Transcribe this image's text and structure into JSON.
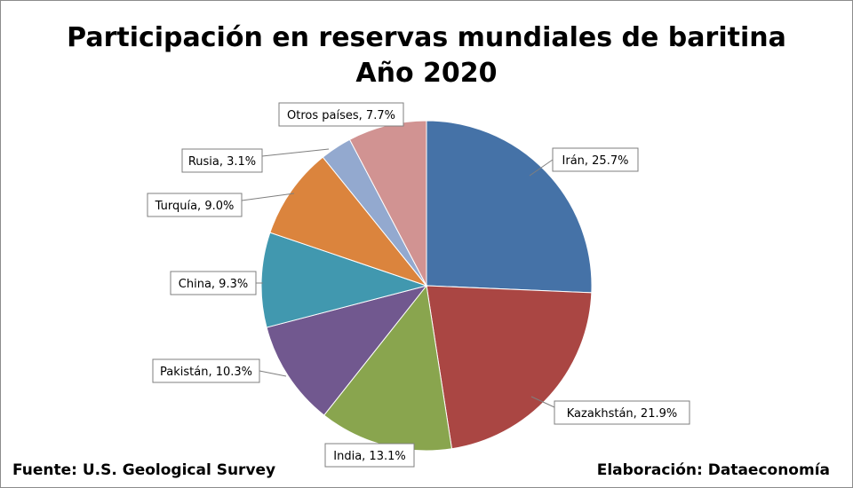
{
  "chart_data": {
    "type": "pie",
    "title": "Participación en reservas mundiales de baritina",
    "subtitle": "Año 2020",
    "slices": [
      {
        "label": "Irán",
        "value": 25.7,
        "display": "Irán, 25.7%",
        "color": "#4572A7"
      },
      {
        "label": "Kazakhstán",
        "value": 21.9,
        "display": "Kazakhstán, 21.9%",
        "color": "#AA4643"
      },
      {
        "label": "India",
        "value": 13.1,
        "display": "India, 13.1%",
        "color": "#89A54E"
      },
      {
        "label": "Pakistán",
        "value": 10.3,
        "display": "Pakistán, 10.3%",
        "color": "#71588F"
      },
      {
        "label": "China",
        "value": 9.3,
        "display": "China, 9.3%",
        "color": "#4198AF"
      },
      {
        "label": "Turquía",
        "value": 9.0,
        "display": "Turquía, 9.0%",
        "color": "#DB843D"
      },
      {
        "label": "Rusia",
        "value": 3.1,
        "display": "Rusia, 3.1%",
        "color": "#93A9CF"
      },
      {
        "label": "Otros países",
        "value": 7.7,
        "display": "Otros países, 7.7%",
        "color": "#D19392"
      }
    ]
  },
  "footer": {
    "source": "Fuente: U.S. Geological Survey",
    "credit": "Elaboración: Dataeconomía"
  }
}
